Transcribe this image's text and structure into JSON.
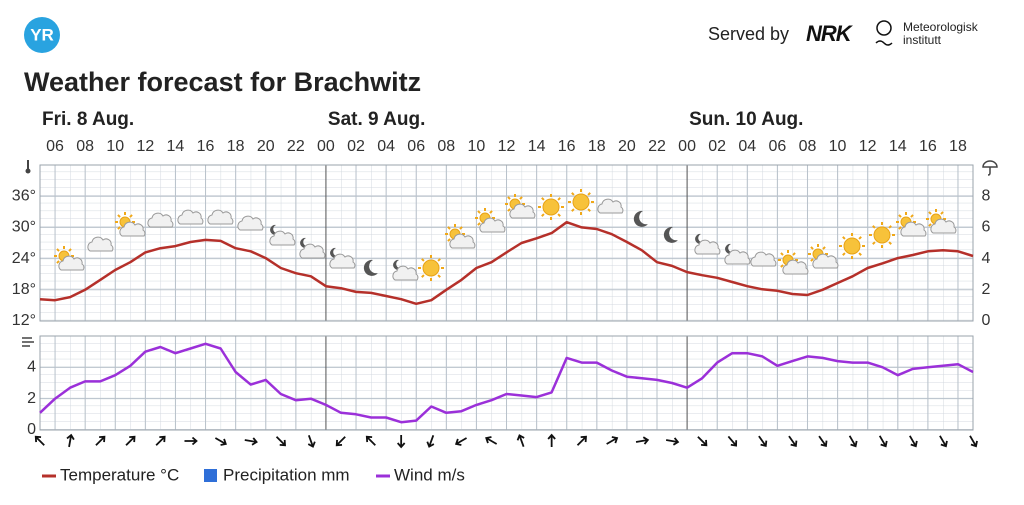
{
  "header": {
    "logo": "YR",
    "served_by": "Served by",
    "nrk": "NRK",
    "met_line1": "Meteorologisk",
    "met_line2": "institutt"
  },
  "chart_data": [
    {
      "type": "line",
      "title": "Weather forecast for Brachwitz",
      "days": [
        "Fri. 8 Aug.",
        "Sat. 9 Aug.",
        "Sun. 10 Aug."
      ],
      "x": [
        5,
        6,
        7,
        8,
        9,
        10,
        11,
        12,
        13,
        14,
        15,
        16,
        17,
        18,
        19,
        20,
        21,
        22,
        23,
        24,
        25,
        26,
        27,
        28,
        29,
        30,
        31,
        32,
        33,
        34,
        35,
        36,
        37,
        38,
        39,
        40,
        41,
        42,
        43,
        44,
        45,
        46,
        47,
        48,
        49,
        50,
        51,
        52,
        53,
        54,
        55,
        56,
        57,
        58,
        59,
        60,
        61,
        62,
        63,
        64,
        65,
        66,
        67
      ],
      "xlim": [
        5,
        67
      ],
      "xticks": [
        {
          "value": 6,
          "label": "06"
        },
        {
          "value": 8,
          "label": "08"
        },
        {
          "value": 10,
          "label": "10"
        },
        {
          "value": 12,
          "label": "12"
        },
        {
          "value": 14,
          "label": "14"
        },
        {
          "value": 16,
          "label": "16"
        },
        {
          "value": 18,
          "label": "18"
        },
        {
          "value": 20,
          "label": "20"
        },
        {
          "value": 22,
          "label": "22"
        },
        {
          "value": 24,
          "label": "00"
        },
        {
          "value": 26,
          "label": "02"
        },
        {
          "value": 28,
          "label": "04"
        },
        {
          "value": 30,
          "label": "06"
        },
        {
          "value": 32,
          "label": "08"
        },
        {
          "value": 34,
          "label": "10"
        },
        {
          "value": 36,
          "label": "12"
        },
        {
          "value": 38,
          "label": "14"
        },
        {
          "value": 40,
          "label": "16"
        },
        {
          "value": 42,
          "label": "18"
        },
        {
          "value": 44,
          "label": "20"
        },
        {
          "value": 46,
          "label": "22"
        },
        {
          "value": 48,
          "label": "00"
        },
        {
          "value": 50,
          "label": "02"
        },
        {
          "value": 52,
          "label": "04"
        },
        {
          "value": 54,
          "label": "06"
        },
        {
          "value": 56,
          "label": "08"
        },
        {
          "value": 58,
          "label": "10"
        },
        {
          "value": 60,
          "label": "12"
        },
        {
          "value": 62,
          "label": "14"
        },
        {
          "value": 64,
          "label": "16"
        },
        {
          "value": 66,
          "label": "18"
        }
      ],
      "ylim": [
        12,
        42
      ],
      "yticks": [
        {
          "value": 12,
          "label": "12°"
        },
        {
          "value": 18,
          "label": "18°"
        },
        {
          "value": 24,
          "label": "24°"
        },
        {
          "value": 30,
          "label": "30°"
        },
        {
          "value": 36,
          "label": "36°"
        }
      ],
      "y2lim": [
        0,
        10
      ],
      "y2ticks": [
        0,
        2,
        4,
        6,
        8
      ],
      "grid": true,
      "series": [
        {
          "name": "Temperature °C",
          "color": "#b5302a",
          "values": [
            16.2,
            16,
            16.6,
            18,
            19.9,
            21.8,
            23.3,
            25.2,
            26,
            26.4,
            27.2,
            27.6,
            27.4,
            26,
            25.4,
            24.1,
            22.2,
            21.2,
            20.6,
            18.7,
            18.3,
            17.6,
            17.4,
            16.8,
            16.2,
            15.3,
            16,
            18,
            19.9,
            22.2,
            23.3,
            25.2,
            27,
            27.9,
            28.9,
            31,
            30,
            29.7,
            28.7,
            27.2,
            25.6,
            23.3,
            22.6,
            21.4,
            20.8,
            20.3,
            19.5,
            18.7,
            18.1,
            17.8,
            17.2,
            17,
            18,
            19.3,
            20.6,
            22.2,
            23.1,
            24.1,
            24.7,
            25.4,
            25.6,
            25.4,
            24.5
          ]
        },
        {
          "name": "Precipitation mm",
          "color": "#2f6fd8",
          "axis": "y2",
          "values": [
            0,
            0,
            0,
            0,
            0,
            0,
            0,
            0,
            0,
            0,
            0,
            0,
            0,
            0,
            0,
            0,
            0,
            0,
            0,
            0,
            0,
            0,
            0,
            0,
            0,
            0,
            0,
            0,
            0,
            0,
            0,
            0,
            0,
            0,
            0,
            0,
            0,
            0,
            0,
            0,
            0,
            0,
            0,
            0,
            0,
            0,
            0,
            0,
            0,
            0,
            0,
            0,
            0,
            0,
            0,
            0,
            0,
            0,
            0,
            0,
            0,
            0,
            0
          ]
        }
      ]
    },
    {
      "type": "line",
      "x": [
        5,
        6,
        7,
        8,
        9,
        10,
        11,
        12,
        13,
        14,
        15,
        16,
        17,
        18,
        19,
        20,
        21,
        22,
        23,
        24,
        25,
        26,
        27,
        28,
        29,
        30,
        31,
        32,
        33,
        34,
        35,
        36,
        37,
        38,
        39,
        40,
        41,
        42,
        43,
        44,
        45,
        46,
        47,
        48,
        49,
        50,
        51,
        52,
        53,
        54,
        55,
        56,
        57,
        58,
        59,
        60,
        61,
        62,
        63,
        64,
        65,
        66,
        67
      ],
      "xlim": [
        5,
        67
      ],
      "ylim": [
        0,
        6
      ],
      "yticks": [
        0,
        2,
        4
      ],
      "grid": true,
      "series": [
        {
          "name": "Wind m/s",
          "color": "#9b30d9",
          "values": [
            1.1,
            2,
            2.7,
            3.1,
            3.1,
            3.5,
            4.1,
            5,
            5.3,
            4.9,
            5.2,
            5.5,
            5.2,
            3.7,
            2.9,
            3.2,
            2.3,
            1.9,
            2,
            1.6,
            1.1,
            1,
            0.8,
            0.8,
            0.5,
            0.6,
            1.5,
            1.1,
            1.2,
            1.6,
            1.9,
            2.3,
            2.2,
            2.1,
            2.4,
            4.6,
            4.3,
            4.3,
            3.8,
            3.4,
            3.3,
            3.2,
            3,
            2.7,
            3.3,
            4.3,
            4.9,
            4.9,
            4.7,
            4.1,
            4.4,
            4.7,
            4.6,
            4.4,
            4.3,
            4.3,
            4,
            3.5,
            3.9,
            4,
            4.1,
            4.2,
            3.7
          ]
        }
      ],
      "wind_arrows": {
        "x": [
          5,
          7,
          9,
          11,
          13,
          15,
          17,
          19,
          21,
          23,
          25,
          27,
          29,
          31,
          33,
          35,
          37,
          39,
          41,
          43,
          45,
          47,
          49,
          51,
          53,
          55,
          57,
          59,
          61,
          63,
          65,
          67
        ],
        "direction": [
          315,
          10,
          45,
          45,
          45,
          90,
          120,
          100,
          135,
          160,
          225,
          315,
          180,
          200,
          240,
          300,
          340,
          0,
          45,
          60,
          80,
          100,
          135,
          140,
          145,
          145,
          145,
          150,
          150,
          150,
          150,
          150
        ]
      }
    }
  ]
}
